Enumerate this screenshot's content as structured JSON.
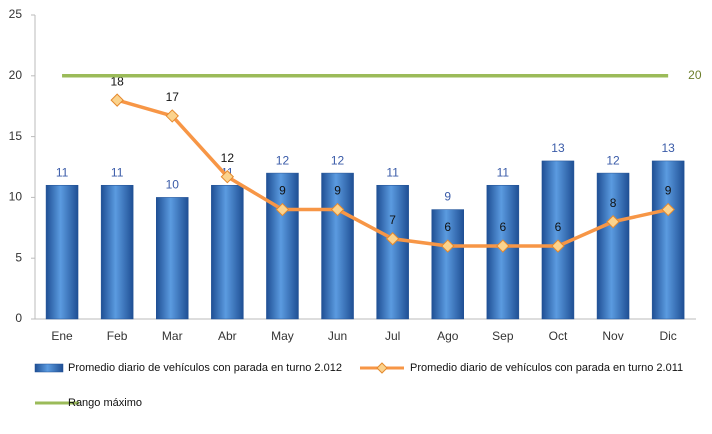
{
  "chart_data": {
    "type": "bar",
    "categories": [
      "Ene",
      "Feb",
      "Mar",
      "Abr",
      "May",
      "Jun",
      "Jul",
      "Ago",
      "Sep",
      "Oct",
      "Nov",
      "Dic"
    ],
    "series": [
      {
        "name": "Promedio diario de vehículos con parada en turno 2.012",
        "type": "bar",
        "color": "#2e6fc0",
        "values": [
          11,
          11,
          10,
          11,
          12,
          12,
          11,
          9,
          11,
          13,
          12,
          13
        ]
      },
      {
        "name": "Promedio diario de vehículos con parada en turno 2.011",
        "type": "line",
        "color": "#f79646",
        "values": [
          null,
          18,
          16.7,
          11.7,
          9,
          9,
          6.6,
          6,
          6,
          6,
          8,
          9
        ],
        "value_labels": [
          null,
          "18",
          "17",
          "12",
          "9",
          "9",
          "7",
          "6",
          "6",
          "6",
          "8",
          "9"
        ]
      },
      {
        "name": "Rango máximo",
        "type": "line",
        "color": "#9bbb59",
        "values": [
          20,
          20,
          20,
          20,
          20,
          20,
          20,
          20,
          20,
          20,
          20,
          20
        ]
      }
    ],
    "ylim": [
      0,
      25
    ],
    "yticks": [
      0,
      5,
      10,
      15,
      20,
      25
    ],
    "grid": false,
    "legend": "bottom"
  }
}
